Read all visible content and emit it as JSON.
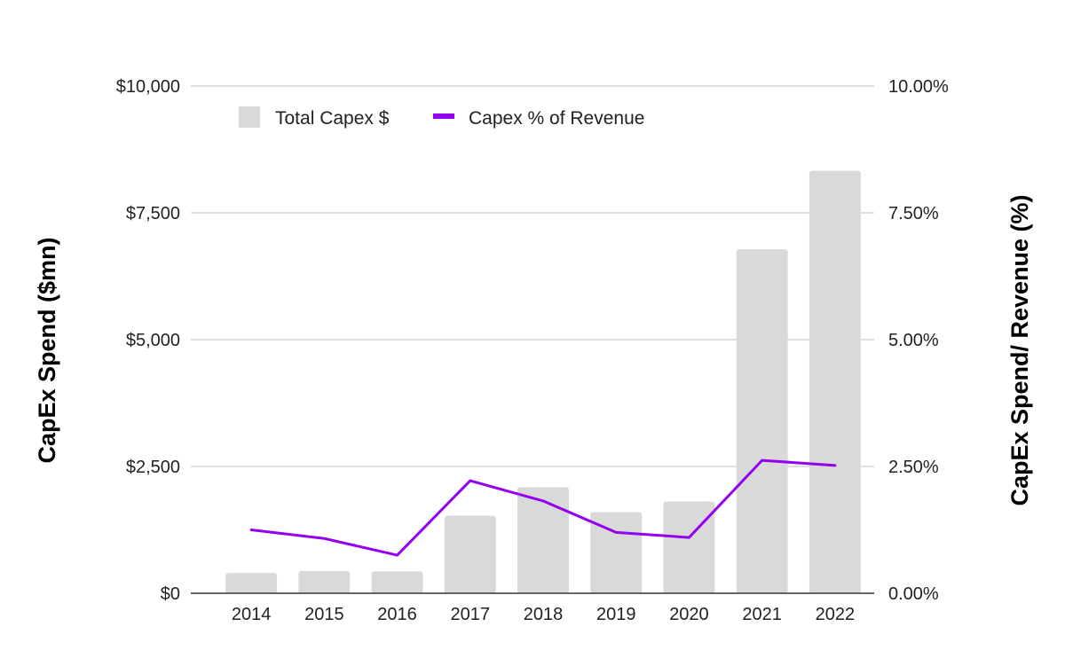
{
  "chart_data": {
    "type": "bar",
    "categories": [
      "2014",
      "2015",
      "2016",
      "2017",
      "2018",
      "2019",
      "2020",
      "2021",
      "2022"
    ],
    "series": [
      {
        "name": "Total Capex $",
        "type": "bar",
        "axis": "left",
        "color": "#d9d9d9",
        "values": [
          400,
          440,
          430,
          1530,
          2090,
          1600,
          1810,
          6780,
          8330
        ]
      },
      {
        "name": "Capex % of Revenue",
        "type": "line",
        "axis": "right",
        "color": "#9400f2",
        "values": [
          1.25,
          1.08,
          0.75,
          2.22,
          1.82,
          1.2,
          1.1,
          2.62,
          2.52
        ]
      }
    ],
    "ylabel": "CapEx Spend ($mn)",
    "y2label": "CapEx Spend/ Revenue (%)",
    "ylim": [
      0,
      10000
    ],
    "y2lim": [
      0,
      10
    ],
    "yticks": [
      {
        "value": 0,
        "label": "$0"
      },
      {
        "value": 2500,
        "label": "$2,500"
      },
      {
        "value": 5000,
        "label": "$5,000"
      },
      {
        "value": 7500,
        "label": "$7,500"
      },
      {
        "value": 10000,
        "label": "$10,000"
      }
    ],
    "y2ticks": [
      {
        "value": 0,
        "label": "0.00%"
      },
      {
        "value": 2.5,
        "label": "2.50%"
      },
      {
        "value": 5,
        "label": "5.00%"
      },
      {
        "value": 7.5,
        "label": "7.50%"
      },
      {
        "value": 10,
        "label": "10.00%"
      }
    ],
    "grid": true,
    "legend": "top-left"
  }
}
